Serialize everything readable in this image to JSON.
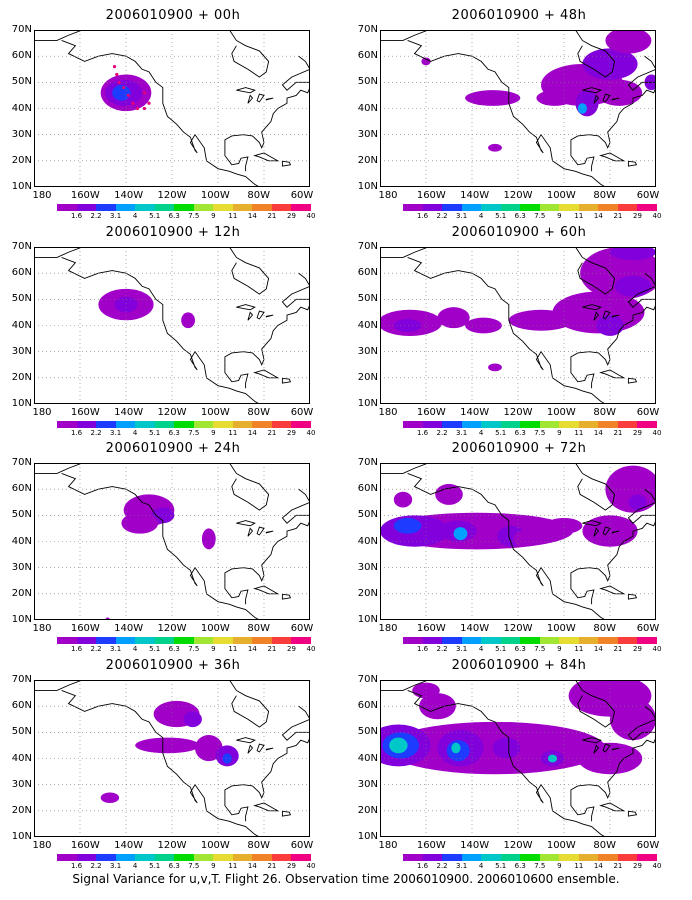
{
  "panels": [
    {
      "title": "2006010900 + 00h"
    },
    {
      "title": "2006010900 + 48h"
    },
    {
      "title": "2006010900 + 12h"
    },
    {
      "title": "2006010900 + 60h"
    },
    {
      "title": "2006010900 + 24h"
    },
    {
      "title": "2006010900 + 72h"
    },
    {
      "title": "2006010900 + 36h"
    },
    {
      "title": "2006010900 + 84h"
    }
  ],
  "lat_labels": [
    "70N",
    "60N",
    "50N",
    "40N",
    "30N",
    "20N",
    "10N"
  ],
  "lon_labels": [
    "180",
    "160W",
    "140W",
    "120W",
    "100W",
    "80W",
    "60W"
  ],
  "colorbar": {
    "labels": [
      "1.6",
      "2.2",
      "3.1",
      "4",
      "5.1",
      "6.3",
      "7.5",
      "9",
      "11",
      "14",
      "21",
      "29",
      "40"
    ],
    "colors": [
      "#a000c8",
      "#8200dc",
      "#1e3cff",
      "#00a0ff",
      "#00c8c8",
      "#00d28c",
      "#00dc00",
      "#a0e632",
      "#e6dc32",
      "#e6af2d",
      "#f08228",
      "#fa3c3c",
      "#f00082"
    ]
  },
  "footer": "Signal Variance for u,v,T. Flight 26. Observation time 2006010900. 2006010600 ensemble.",
  "map_extent": {
    "lon": [
      -180,
      -60
    ],
    "lat": [
      10,
      70
    ]
  }
}
